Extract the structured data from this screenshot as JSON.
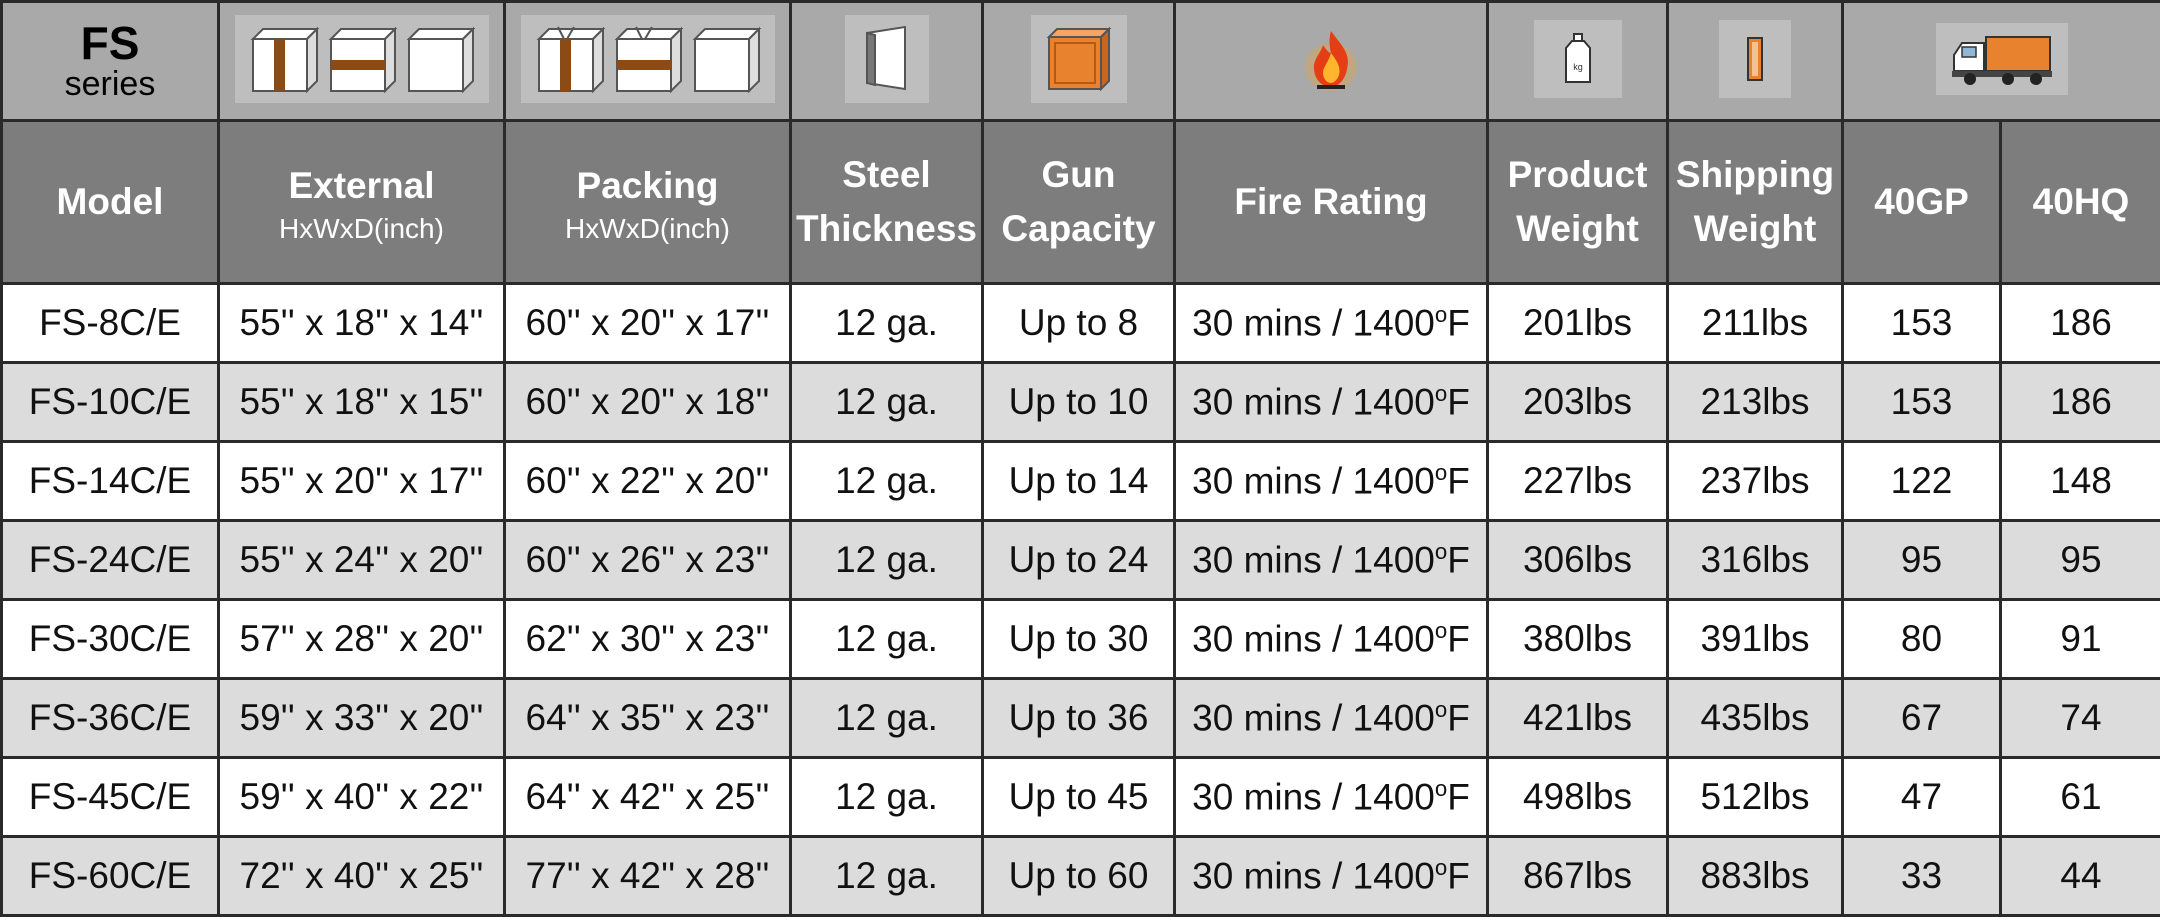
{
  "series": {
    "title": "FS",
    "subtitle": "series"
  },
  "icons": [
    "cabinet-dimensions-icon",
    "packing-box-icon",
    "steel-panel-icon",
    "orange-steel-icon",
    "fire-icon",
    "product-weight-icon",
    "shipping-weight-icon",
    "container-truck-icon"
  ],
  "colors": {
    "header_bg": "#7d7d7d",
    "icon_row_bg": "#a9a9a9",
    "stripe_bg": "#dcdcdc",
    "accent_orange": "#e8822e",
    "band_brown": "#8a4b17"
  },
  "headers": {
    "model": "Model",
    "external": {
      "label": "External",
      "sub": "HxWxD(inch)"
    },
    "packing": {
      "label": "Packing",
      "sub": "HxWxD(inch)"
    },
    "steel": [
      "Steel",
      "Thickness"
    ],
    "gun": [
      "Gun",
      "Capacity"
    ],
    "fire": "Fire Rating",
    "product_weight": [
      "Product",
      "Weight"
    ],
    "shipping_weight": [
      "Shipping",
      "Weight"
    ],
    "gp40": "40GP",
    "hq40": "40HQ"
  },
  "rows": [
    {
      "model": "FS-8C/E",
      "external": "55'' x 18'' x 14''",
      "packing": "60'' x 20'' x 17''",
      "steel": "12 ga.",
      "gun": "Up to 8",
      "fire_prefix": "30 mins / 1400",
      "fire_sup": "o",
      "fire_suffix": "F",
      "product_weight": "201lbs",
      "shipping_weight": "211lbs",
      "gp40": "153",
      "hq40": "186"
    },
    {
      "model": "FS-10C/E",
      "external": "55'' x 18'' x 15''",
      "packing": "60'' x 20'' x 18''",
      "steel": "12 ga.",
      "gun": "Up to 10",
      "fire_prefix": "30 mins / 1400",
      "fire_sup": "o",
      "fire_suffix": "F",
      "product_weight": "203lbs",
      "shipping_weight": "213lbs",
      "gp40": "153",
      "hq40": "186"
    },
    {
      "model": "FS-14C/E",
      "external": "55'' x 20'' x 17''",
      "packing": "60'' x 22'' x 20''",
      "steel": "12 ga.",
      "gun": "Up to 14",
      "fire_prefix": "30 mins / 1400",
      "fire_sup": "o",
      "fire_suffix": "F",
      "product_weight": "227lbs",
      "shipping_weight": "237lbs",
      "gp40": "122",
      "hq40": "148"
    },
    {
      "model": "FS-24C/E",
      "external": "55'' x 24'' x 20''",
      "packing": "60'' x 26'' x 23''",
      "steel": "12 ga.",
      "gun": "Up to 24",
      "fire_prefix": "30 mins / 1400",
      "fire_sup": "o",
      "fire_suffix": "F",
      "product_weight": "306lbs",
      "shipping_weight": "316lbs",
      "gp40": "95",
      "hq40": "95"
    },
    {
      "model": "FS-30C/E",
      "external": "57'' x 28'' x 20''",
      "packing": "62'' x 30'' x 23''",
      "steel": "12 ga.",
      "gun": "Up to 30",
      "fire_prefix": "30 mins / 1400",
      "fire_sup": "o",
      "fire_suffix": "F",
      "product_weight": "380lbs",
      "shipping_weight": "391lbs",
      "gp40": "80",
      "hq40": "91"
    },
    {
      "model": "FS-36C/E",
      "external": "59'' x 33'' x 20''",
      "packing": "64'' x 35'' x 23''",
      "steel": "12 ga.",
      "gun": "Up to 36",
      "fire_prefix": "30 mins / 1400",
      "fire_sup": "o",
      "fire_suffix": "F",
      "product_weight": "421lbs",
      "shipping_weight": "435lbs",
      "gp40": "67",
      "hq40": "74"
    },
    {
      "model": "FS-45C/E",
      "external": "59'' x 40'' x 22''",
      "packing": "64'' x 42'' x 25''",
      "steel": "12 ga.",
      "gun": "Up to 45",
      "fire_prefix": "30 mins / 1400",
      "fire_sup": "o",
      "fire_suffix": "F",
      "product_weight": "498lbs",
      "shipping_weight": "512lbs",
      "gp40": "47",
      "hq40": "61"
    },
    {
      "model": "FS-60C/E",
      "external": "72'' x 40'' x 25''",
      "packing": "77'' x 42'' x 28''",
      "steel": "12 ga.",
      "gun": "Up to 60",
      "fire_prefix": "30 mins / 1400",
      "fire_sup": "o",
      "fire_suffix": "F",
      "product_weight": "867lbs",
      "shipping_weight": "883lbs",
      "gp40": "33",
      "hq40": "44"
    }
  ]
}
